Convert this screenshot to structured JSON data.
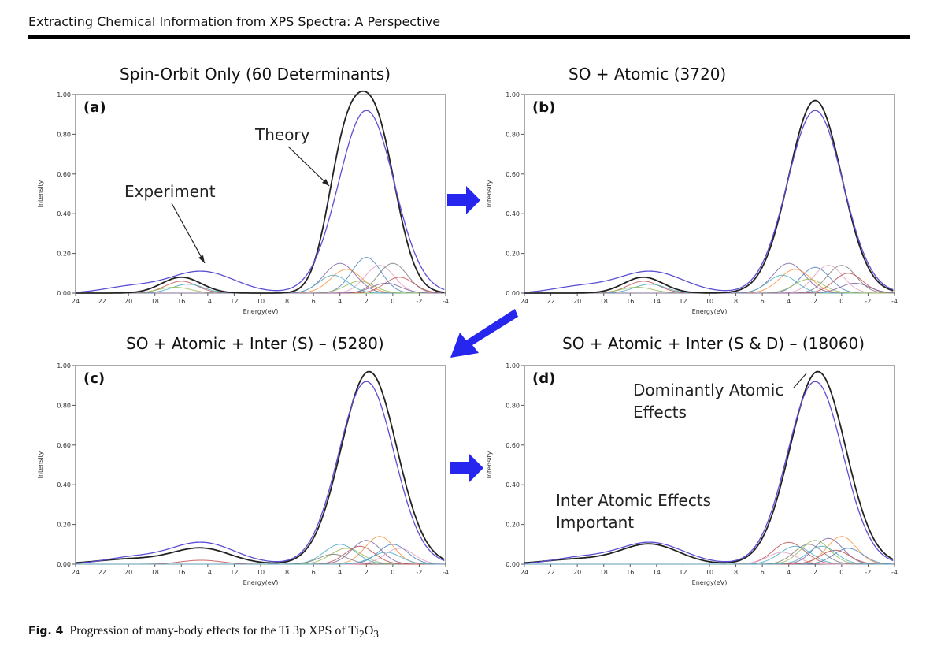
{
  "running_head": "Extracting Chemical Information from XPS Spectra: A Perspective",
  "caption": {
    "label": "Fig. 4",
    "text_before": "Progression of many-body effects for the Ti 3p XPS of Ti",
    "sub1": "2",
    "text_mid": "O",
    "sub2": "3"
  },
  "colors": {
    "theory": "#222222",
    "experiment": "#5a4fd4",
    "arrow": "#2626ee",
    "components": [
      "#c0504d",
      "#4bacc6",
      "#9bbb59",
      "#8064a2",
      "#f79646",
      "#4f81bd",
      "#e4a0c0",
      "#7f7f7f"
    ]
  },
  "chart_data": [
    {
      "type": "line",
      "panel": "(a)",
      "title": "Spin-Orbit Only (60 Determinants)",
      "xlabel": "Energy(eV)",
      "ylabel": "Intensity",
      "xlim": [
        24,
        -4
      ],
      "ylim": [
        0,
        1.0
      ],
      "x_ticks": [
        "24",
        "22",
        "20",
        "18",
        "16",
        "14",
        "12",
        "10",
        "8",
        "6",
        "4",
        "2",
        "0",
        "-2",
        "-4"
      ],
      "y_ticks": [
        "0.00",
        "0.20",
        "0.40",
        "0.60",
        "0.80",
        "1.00"
      ],
      "annotations": [
        "Experiment",
        "Theory"
      ],
      "series": [
        {
          "name": "Theory",
          "peaks": [
            [
              16,
              0.08,
              1.5
            ],
            [
              3.8,
              0.55,
              1.3
            ],
            [
              1.4,
              0.86,
              1.6
            ]
          ]
        },
        {
          "name": "Experiment",
          "peaks": [
            [
              20,
              0.03,
              2.0
            ],
            [
              14.5,
              0.11,
              2.5
            ],
            [
              2.0,
              0.92,
              2.1
            ]
          ]
        }
      ],
      "components": [
        [
          16,
          0.06,
          1.2
        ],
        [
          15.5,
          0.045,
          1.2
        ],
        [
          16.5,
          0.03,
          1.2
        ],
        [
          4.0,
          0.15,
          1.2
        ],
        [
          3.5,
          0.12,
          1.2
        ],
        [
          2.0,
          0.18,
          1.1
        ],
        [
          1.0,
          0.14,
          1.1
        ],
        [
          0.0,
          0.15,
          1.1
        ],
        [
          -0.5,
          0.08,
          1.1
        ],
        [
          4.5,
          0.09,
          1.1
        ],
        [
          2.5,
          0.06,
          1.1
        ],
        [
          0.5,
          0.05,
          1.1
        ]
      ]
    },
    {
      "type": "line",
      "panel": "(b)",
      "title": "SO + Atomic (3720)",
      "xlabel": "Energy(eV)",
      "ylabel": "Intensity",
      "xlim": [
        24,
        -4
      ],
      "ylim": [
        0,
        1.0
      ],
      "x_ticks": [
        "24",
        "22",
        "20",
        "18",
        "16",
        "14",
        "12",
        "10",
        "8",
        "6",
        "4",
        "2",
        "0",
        "-2",
        "-4"
      ],
      "y_ticks": [
        "0.00",
        "0.20",
        "0.40",
        "0.60",
        "0.80",
        "1.00"
      ],
      "annotations": [],
      "series": [
        {
          "name": "Theory",
          "peaks": [
            [
              15.0,
              0.08,
              1.5
            ],
            [
              2.0,
              0.97,
              2.0
            ]
          ]
        },
        {
          "name": "Experiment",
          "peaks": [
            [
              20,
              0.03,
              2.0
            ],
            [
              14.5,
              0.11,
              2.5
            ],
            [
              2.0,
              0.92,
              2.1
            ]
          ]
        }
      ],
      "components": [
        [
          15,
          0.06,
          1.2
        ],
        [
          14.5,
          0.045,
          1.2
        ],
        [
          15.5,
          0.03,
          1.2
        ],
        [
          4.0,
          0.15,
          1.2
        ],
        [
          3.5,
          0.12,
          1.2
        ],
        [
          2.0,
          0.13,
          1.1
        ],
        [
          1.0,
          0.14,
          1.1
        ],
        [
          0.0,
          0.14,
          1.1
        ],
        [
          -0.5,
          0.1,
          1.1
        ],
        [
          4.5,
          0.09,
          1.1
        ],
        [
          2.5,
          0.07,
          1.1
        ],
        [
          -1.0,
          0.05,
          1.1
        ]
      ]
    },
    {
      "type": "line",
      "panel": "(c)",
      "title": "SO + Atomic + Inter (S) – (5280)",
      "xlabel": "Energy(eV)",
      "ylabel": "Intensity",
      "xlim": [
        24,
        -4
      ],
      "ylim": [
        0,
        1.0
      ],
      "x_ticks": [
        "24",
        "22",
        "20",
        "18",
        "16",
        "14",
        "12",
        "10",
        "8",
        "6",
        "4",
        "2",
        "0",
        "-2",
        "-4"
      ],
      "y_ticks": [
        "0.00",
        "0.20",
        "0.40",
        "0.60",
        "0.80",
        "1.00"
      ],
      "annotations": [],
      "series": [
        {
          "name": "Theory",
          "peaks": [
            [
              20,
              0.025,
              2.5
            ],
            [
              14.5,
              0.08,
              2.2
            ],
            [
              1.8,
              0.97,
              2.1
            ]
          ]
        },
        {
          "name": "Experiment",
          "peaks": [
            [
              20,
              0.03,
              2.0
            ],
            [
              14.5,
              0.11,
              2.5
            ],
            [
              2.0,
              0.92,
              2.1
            ]
          ]
        }
      ],
      "components": [
        [
          14.5,
          0.02,
          1.5
        ],
        [
          4.0,
          0.1,
          1.2
        ],
        [
          3.5,
          0.08,
          1.2
        ],
        [
          2.0,
          0.12,
          1.1
        ],
        [
          1.0,
          0.14,
          1.1
        ],
        [
          0.0,
          0.1,
          1.1
        ],
        [
          -0.5,
          0.08,
          1.1
        ],
        [
          4.5,
          0.05,
          1.1
        ],
        [
          2.5,
          0.09,
          1.1
        ],
        [
          0.5,
          0.06,
          1.1
        ]
      ]
    },
    {
      "type": "line",
      "panel": "(d)",
      "title": "SO + Atomic + Inter (S & D) – (18060)",
      "xlabel": "Energy(eV)",
      "ylabel": "Intensity",
      "xlim": [
        24,
        -4
      ],
      "ylim": [
        0,
        1.0
      ],
      "x_ticks": [
        "24",
        "22",
        "20",
        "18",
        "16",
        "14",
        "12",
        "10",
        "8",
        "6",
        "4",
        "2",
        "0",
        "-2",
        "-4"
      ],
      "y_ticks": [
        "0.00",
        "0.20",
        "0.40",
        "0.60",
        "0.80",
        "1.00"
      ],
      "annotations": [
        "Dominantly Atomic",
        "Effects",
        "Inter Atomic Effects",
        "Important"
      ],
      "series": [
        {
          "name": "Theory",
          "peaks": [
            [
              20,
              0.025,
              2.5
            ],
            [
              14.5,
              0.1,
              2.2
            ],
            [
              1.8,
              0.97,
              2.1
            ]
          ]
        },
        {
          "name": "Experiment",
          "peaks": [
            [
              20,
              0.03,
              2.0
            ],
            [
              14.5,
              0.11,
              2.5
            ],
            [
              2.0,
              0.92,
              2.1
            ]
          ]
        }
      ],
      "components": [
        [
          4.0,
          0.11,
          1.2
        ],
        [
          3.5,
          0.09,
          1.2
        ],
        [
          2.0,
          0.12,
          1.1
        ],
        [
          1.0,
          0.13,
          1.1
        ],
        [
          0.0,
          0.14,
          1.1
        ],
        [
          -0.5,
          0.08,
          1.1
        ],
        [
          4.5,
          0.06,
          1.1
        ],
        [
          2.5,
          0.1,
          1.1
        ],
        [
          0.5,
          0.07,
          1.1
        ],
        [
          1.5,
          0.09,
          1.1
        ]
      ]
    }
  ]
}
